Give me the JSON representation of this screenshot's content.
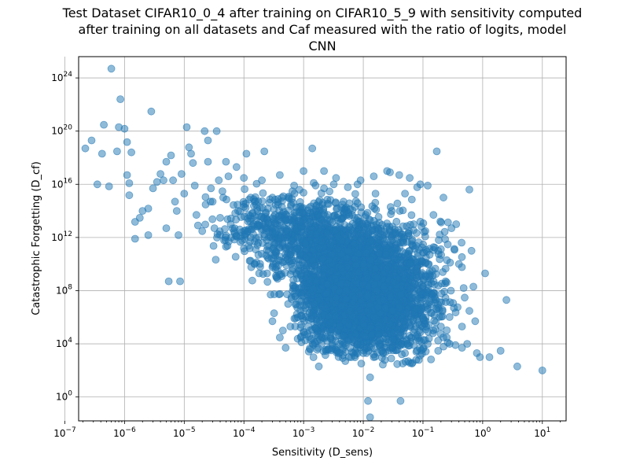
{
  "chart_data": {
    "type": "scatter",
    "title_lines": [
      "Test Dataset CIFAR10_0_4 after training on CIFAR10_5_9 with sensitivity computed",
      "after training on all datasets and Caf measured with the ratio of logits, model",
      "CNN"
    ],
    "xlabel": "Sensitivity (D_sens)",
    "ylabel": "Catastrophic Forgetting (D_cf)",
    "x_scale": "log",
    "y_scale": "log",
    "xlim": [
      1.7e-07,
      25
    ],
    "ylim": [
      0.016,
      4e+25
    ],
    "x_ticks": [
      {
        "exp": -7,
        "label": "10",
        "sup": "−7"
      },
      {
        "exp": -6,
        "label": "10",
        "sup": "−6"
      },
      {
        "exp": -5,
        "label": "10",
        "sup": "−5"
      },
      {
        "exp": -4,
        "label": "10",
        "sup": "−4"
      },
      {
        "exp": -3,
        "label": "10",
        "sup": "−3"
      },
      {
        "exp": -2,
        "label": "10",
        "sup": "−2"
      },
      {
        "exp": -1,
        "label": "10",
        "sup": "−1"
      },
      {
        "exp": 0,
        "label": "10",
        "sup": "0"
      },
      {
        "exp": 1,
        "label": "10",
        "sup": "1"
      }
    ],
    "y_ticks": [
      {
        "exp": 0,
        "label": "10",
        "sup": "0"
      },
      {
        "exp": 4,
        "label": "10",
        "sup": "4"
      },
      {
        "exp": 8,
        "label": "10",
        "sup": "8"
      },
      {
        "exp": 12,
        "label": "10",
        "sup": "12"
      },
      {
        "exp": 16,
        "label": "10",
        "sup": "16"
      },
      {
        "exp": 20,
        "label": "10",
        "sup": "20"
      },
      {
        "exp": 24,
        "label": "10",
        "sup": "24"
      }
    ],
    "grid": true,
    "point_color": "#1f77b4",
    "point_alpha": 0.5,
    "points": [
      [
        6e-07,
        5e+24
      ],
      [
        2.2e-07,
        5e+18
      ],
      [
        2.8e-07,
        2e+19
      ],
      [
        4.5e-07,
        3e+20
      ],
      [
        8e-07,
        2e+20
      ],
      [
        8.5e-07,
        2.5e+22
      ],
      [
        1e-06,
        1.5e+20
      ],
      [
        1.1e-06,
        1.5e+19
      ],
      [
        1.3e-06,
        2.5e+18
      ],
      [
        2.8e-06,
        3e+21
      ],
      [
        4.2e-07,
        2e+18
      ],
      [
        3.5e-07,
        1e+16
      ],
      [
        5.5e-07,
        7000000000000000.0
      ],
      [
        7.5e-07,
        3e+18
      ],
      [
        1.2e-06,
        1.2e+16
      ],
      [
        1.2e-06,
        1500000000000000.0
      ],
      [
        1.1e-06,
        5e+16
      ],
      [
        1.5e-06,
        15000000000000.0
      ],
      [
        1.5e-06,
        800000000000.0
      ],
      [
        1.8e-06,
        30000000000000.0
      ],
      [
        2e-06,
        100000000000000.0
      ],
      [
        2.5e-06,
        150000000000000.0
      ],
      [
        2.5e-06,
        1500000000000.0
      ],
      [
        3e-06,
        5000000000000000.0
      ],
      [
        3.5e-06,
        1.5e+16
      ],
      [
        4e-06,
        6e+16
      ],
      [
        4.5e-06,
        2e+16
      ],
      [
        5e-06,
        5000000000000.0
      ],
      [
        5e-06,
        5e+17
      ],
      [
        5.5e-06,
        500000000.0
      ],
      [
        6e-06,
        1.5e+18
      ],
      [
        6.5e-06,
        2e+16
      ],
      [
        7e-06,
        500000000000000.0
      ],
      [
        7.5e-06,
        100000000000000.0
      ],
      [
        8e-06,
        1500000000000.0
      ],
      [
        8.5e-06,
        500000000.0
      ],
      [
        9e-06,
        6e+16
      ],
      [
        1e-05,
        2000000000000000.0
      ],
      [
        1.1e-05,
        2e+20
      ],
      [
        1.2e-05,
        6e+18
      ],
      [
        1.3e-05,
        2e+18
      ],
      [
        1.4e-05,
        4e+17
      ],
      [
        1.5e-05,
        8000000000000000.0
      ],
      [
        1.6e-05,
        50000000000000.0
      ],
      [
        1.7e-05,
        8000000000000.0
      ],
      [
        2e-05,
        3000000000000.0
      ],
      [
        2.2e-05,
        1e+20
      ],
      [
        2.5e-05,
        2e+19
      ],
      [
        2.5e-05,
        5e+17
      ],
      [
        2.8e-05,
        5000000000000000.0
      ],
      [
        3e-05,
        500000000000000.0
      ],
      [
        3.2e-05,
        5000000000000.0
      ],
      [
        3.5e-05,
        1e+20
      ],
      [
        3.8e-05,
        2e+16
      ],
      [
        4e-05,
        30000000000000.0
      ],
      [
        4.5e-05,
        1000000000000000.0
      ],
      [
        5e-05,
        5e+17
      ],
      [
        5e-05,
        200000000000.0
      ],
      [
        5.5e-05,
        4e+16
      ],
      [
        6e-05,
        10000000000000.0
      ],
      [
        7e-05,
        5000000000000.0
      ],
      [
        7.5e-05,
        2e+17
      ],
      [
        8e-05,
        100000000000000.0
      ],
      [
        8.5e-05,
        4000000000000.0
      ],
      [
        0.0001,
        3e+16
      ],
      [
        0.0001,
        150000000000.0
      ],
      [
        0.00011,
        2e+18
      ],
      [
        0.00012,
        50000000000000.0
      ],
      [
        0.00013,
        1000000000000.0
      ],
      [
        0.00015,
        10000000000.0
      ],
      [
        0.00016,
        300000000000000.0
      ],
      [
        0.00018,
        2000000000.0
      ],
      [
        0.0002,
        2e+16
      ],
      [
        0.00022,
        3e+18
      ],
      [
        0.00024,
        5000000000000.0
      ],
      [
        0.00025,
        30000000000.0
      ],
      [
        0.00028,
        50000000.0
      ],
      [
        0.0003,
        1000000000000000.0
      ],
      [
        0.00032,
        2000000.0
      ],
      [
        0.00035,
        1000000000.0
      ],
      [
        0.0004,
        5e+16
      ],
      [
        0.00042,
        1000000000000.0
      ],
      [
        0.00045,
        100000.0
      ],
      [
        0.0005,
        20000000000000.0
      ],
      [
        0.00055,
        10000000.0
      ],
      [
        0.0006,
        50000000000.0
      ],
      [
        0.00065,
        3000000000000000.0
      ],
      [
        0.0007,
        800000.0
      ],
      [
        0.00075,
        2000000000.0
      ],
      [
        0.0008,
        1000000000000.0
      ],
      [
        0.0009,
        30000.0
      ],
      [
        0.001,
        1e+17
      ],
      [
        0.001,
        300000000.0
      ],
      [
        0.0011,
        30000000000.0
      ],
      [
        0.0012,
        200000.0
      ],
      [
        0.0013,
        2000000000000.0
      ],
      [
        0.0014,
        5e+18
      ],
      [
        0.0015,
        10000000.0
      ],
      [
        0.0016,
        100000000000000.0
      ],
      [
        0.0017,
        3000000000.0
      ],
      [
        0.0018,
        200.0
      ],
      [
        0.002,
        500000000000.0
      ],
      [
        0.0022,
        1e+17
      ],
      [
        0.0023,
        5000000.0
      ],
      [
        0.0025,
        300000000.0
      ],
      [
        0.0027,
        20000000000000.0
      ],
      [
        0.0028,
        80000.0
      ],
      [
        0.003,
        50000000000.0
      ],
      [
        0.0032,
        1e+16
      ],
      [
        0.0035,
        30000000.0
      ],
      [
        0.0038,
        1000000000000.0
      ],
      [
        0.004,
        200000.0
      ],
      [
        0.0043,
        5000000000.0
      ],
      [
        0.0045,
        300000000000000.0
      ],
      [
        0.005,
        500.0
      ],
      [
        0.0052,
        100000000.0
      ],
      [
        0.0055,
        100000000000.0
      ],
      [
        0.006,
        3000000.0
      ],
      [
        0.0065,
        50000000000000.0
      ],
      [
        0.007,
        20000.0
      ],
      [
        0.0075,
        8000000000.0
      ],
      [
        0.008,
        1e+16
      ],
      [
        0.0085,
        50000000.0
      ],
      [
        0.009,
        2000000000000.0
      ],
      [
        0.01,
        300000.0
      ],
      [
        0.01,
        10000000000.0
      ],
      [
        0.011,
        50000000000000.0
      ],
      [
        0.012,
        200000000.0
      ],
      [
        0.012,
        0.5
      ],
      [
        0.013,
        30.0
      ],
      [
        0.013,
        0.03
      ],
      [
        0.014,
        500000000000.0
      ],
      [
        0.015,
        1000000.0
      ],
      [
        0.016,
        2000000000000000.0
      ],
      [
        0.017,
        1000000000.0
      ],
      [
        0.018,
        50000.0
      ],
      [
        0.02,
        3000000000000.0
      ],
      [
        0.022,
        20000000.0
      ],
      [
        0.024,
        50000000000.0
      ],
      [
        0.025,
        1e+17
      ],
      [
        0.028,
        300000.0
      ],
      [
        0.03,
        100000000000000.0
      ],
      [
        0.032,
        500000000.0
      ],
      [
        0.035,
        2000000000000.0
      ],
      [
        0.037,
        300.0
      ],
      [
        0.04,
        5000000.0
      ],
      [
        0.042,
        0.5
      ],
      [
        0.045,
        5000000000.0
      ],
      [
        0.05,
        2000000000000000.0
      ],
      [
        0.055,
        10000.0
      ],
      [
        0.06,
        100000000000.0
      ],
      [
        0.065,
        30000000.0
      ],
      [
        0.07,
        10000000000000.0
      ],
      [
        0.075,
        200000.0
      ],
      [
        0.08,
        5000000000.0
      ],
      [
        0.09,
        1e+16
      ],
      [
        0.1,
        200000000.0
      ],
      [
        0.11,
        3000000000000.0
      ],
      [
        0.12,
        10000.0
      ],
      [
        0.13,
        50000000000.0
      ],
      [
        0.14,
        2000000.0
      ],
      [
        0.15,
        50000000000000.0
      ],
      [
        0.16,
        30000000.0
      ],
      [
        0.17,
        3e+18
      ],
      [
        0.18,
        100000000000.0
      ],
      [
        0.2,
        200000.0
      ],
      [
        0.22,
        1000000000000000.0
      ],
      [
        0.24,
        500000000.0
      ],
      [
        0.26,
        300000000000.0
      ],
      [
        0.28,
        10000.0
      ],
      [
        0.3,
        5000000000000.0
      ],
      [
        0.33,
        5000000.0
      ],
      [
        0.36,
        10000000000000.0
      ],
      [
        0.4,
        10000000000.0
      ],
      [
        0.45,
        5000.0
      ],
      [
        0.5,
        30000000.0
      ],
      [
        0.55,
        10000.0
      ],
      [
        0.6,
        4000000000000000.0
      ],
      [
        0.65,
        100000000000.0
      ],
      [
        0.7,
        200000000.0
      ],
      [
        0.8,
        2000.0
      ],
      [
        0.9,
        1000.0
      ],
      [
        1.1,
        2000000000.0
      ],
      [
        1.3,
        1000.0
      ],
      [
        2,
        3000.0
      ],
      [
        2.5,
        20000000.0
      ],
      [
        3.8,
        200.0
      ],
      [
        10,
        100.0
      ],
      [
        0.1,
        800000.0
      ],
      [
        0.15,
        100000.0
      ],
      [
        0.25,
        30000.0
      ],
      [
        0.35,
        8000.0
      ],
      [
        0.45,
        200000.0
      ],
      [
        0.6,
        3000000.0
      ],
      [
        0.75,
        500000.0
      ],
      [
        0.002,
        10000.0
      ],
      [
        0.003,
        10000.0
      ],
      [
        0.004,
        10000.0
      ],
      [
        0.006,
        5000.0
      ],
      [
        0.008,
        10000.0
      ],
      [
        0.01,
        2000.0
      ],
      [
        0.015,
        1000.0
      ],
      [
        0.02,
        3000.0
      ],
      [
        0.03,
        5000.0
      ],
      [
        0.05,
        2000.0
      ],
      [
        0.07,
        8000.0
      ],
      [
        0.1,
        4000.0
      ],
      [
        0.18,
        3000.0
      ],
      [
        0.0022,
        5000000000000000.0
      ],
      [
        0.0035,
        3e+16
      ],
      [
        0.0055,
        6000000000000000.0
      ],
      [
        0.009,
        2e+16
      ],
      [
        0.015,
        4e+16
      ],
      [
        0.028,
        8e+16
      ],
      [
        0.04,
        5e+16
      ],
      [
        0.06,
        3e+16
      ],
      [
        0.08,
        6000000000000000.0
      ],
      [
        0.12,
        8000000000000000.0
      ],
      [
        0.0004,
        30000.0
      ],
      [
        0.0006,
        200000.0
      ],
      [
        0.0008,
        1000000.0
      ],
      [
        0.0013,
        20000.0
      ],
      [
        0.0003,
        500000.0
      ],
      [
        0.0005,
        5000.0
      ]
    ],
    "dense_clusters": [
      {
        "lx": -2.2,
        "ly": 8.0,
        "sx": 0.42,
        "sy": 2.1,
        "n": 2600
      },
      {
        "lx": -2.6,
        "ly": 11.5,
        "sx": 0.6,
        "sy": 1.6,
        "n": 650
      },
      {
        "lx": -3.4,
        "ly": 12.8,
        "sx": 0.55,
        "sy": 1.4,
        "n": 320
      },
      {
        "lx": -1.5,
        "ly": 6.5,
        "sx": 0.4,
        "sy": 1.7,
        "n": 650
      },
      {
        "lx": -1.3,
        "ly": 10.0,
        "sx": 0.45,
        "sy": 1.8,
        "n": 320
      }
    ]
  }
}
